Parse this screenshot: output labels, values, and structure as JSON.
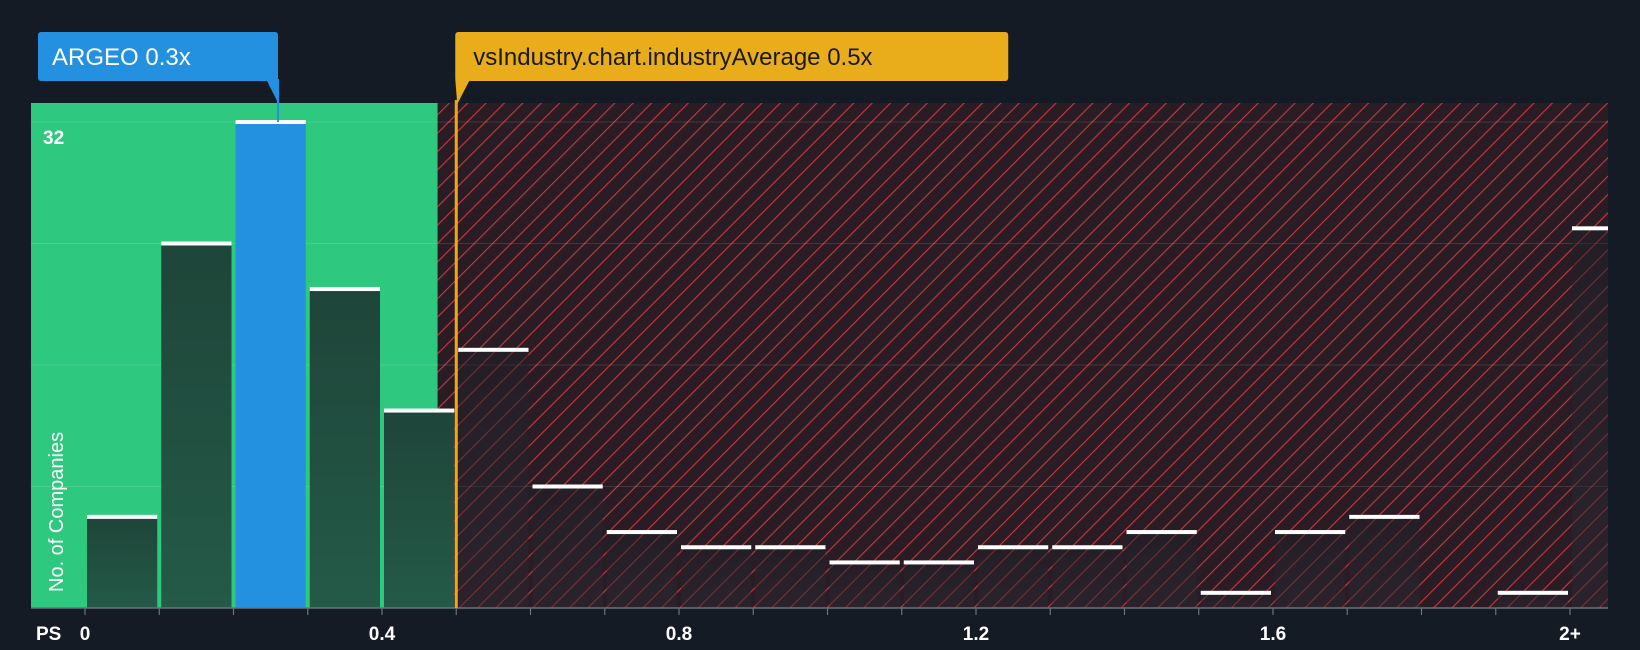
{
  "chart_data": {
    "type": "bar",
    "title": "",
    "xlabel": "PS",
    "ylabel": "No. of Companies",
    "ylim": [
      0,
      32
    ],
    "y_max_label": "32",
    "x_tick_labels": [
      "0",
      "0.4",
      "0.8",
      "1.2",
      "1.6",
      "2+"
    ],
    "x_tick_values": [
      0,
      0.4,
      0.8,
      1.2,
      1.6,
      2.0
    ],
    "bin_width": 0.1,
    "categories": [
      "0-0.1",
      "0.1-0.2",
      "0.2-0.3",
      "0.3-0.4",
      "0.4-0.5",
      "0.5-0.6",
      "0.6-0.7",
      "0.7-0.8",
      "0.8-0.9",
      "0.9-1.0",
      "1.0-1.1",
      "1.1-1.2",
      "1.2-1.3",
      "1.3-1.4",
      "1.4-1.5",
      "1.5-1.6",
      "1.6-1.7",
      "1.7-1.8",
      "1.8-1.9",
      "1.9-2.0",
      "2+"
    ],
    "values": [
      6,
      24,
      32,
      21,
      13,
      17,
      8,
      5,
      4,
      4,
      3,
      3,
      4,
      4,
      5,
      1,
      5,
      6,
      0,
      1,
      25
    ],
    "highlight_index": 2,
    "fair_range": [
      0,
      0.475
    ],
    "company": {
      "name": "ARGEO",
      "value": 0.3,
      "label": "ARGEO 0.3x"
    },
    "industry": {
      "value": 0.5,
      "label": "vsIndustry.chart.industryAverage 0.5x"
    },
    "colors": {
      "background": "#151b24",
      "fair_zone": "#2ec97e",
      "expensive_zone": "#c8393f",
      "bar_dark": "#1f4a3e",
      "bar_highlight": "#2490e0",
      "bar_cap": "#ffffff",
      "industry_line": "#f0a818",
      "industry_label_bg": "#e9ac1b",
      "company_label_bg": "#2490e0",
      "axis_text": "#ffffff"
    }
  }
}
